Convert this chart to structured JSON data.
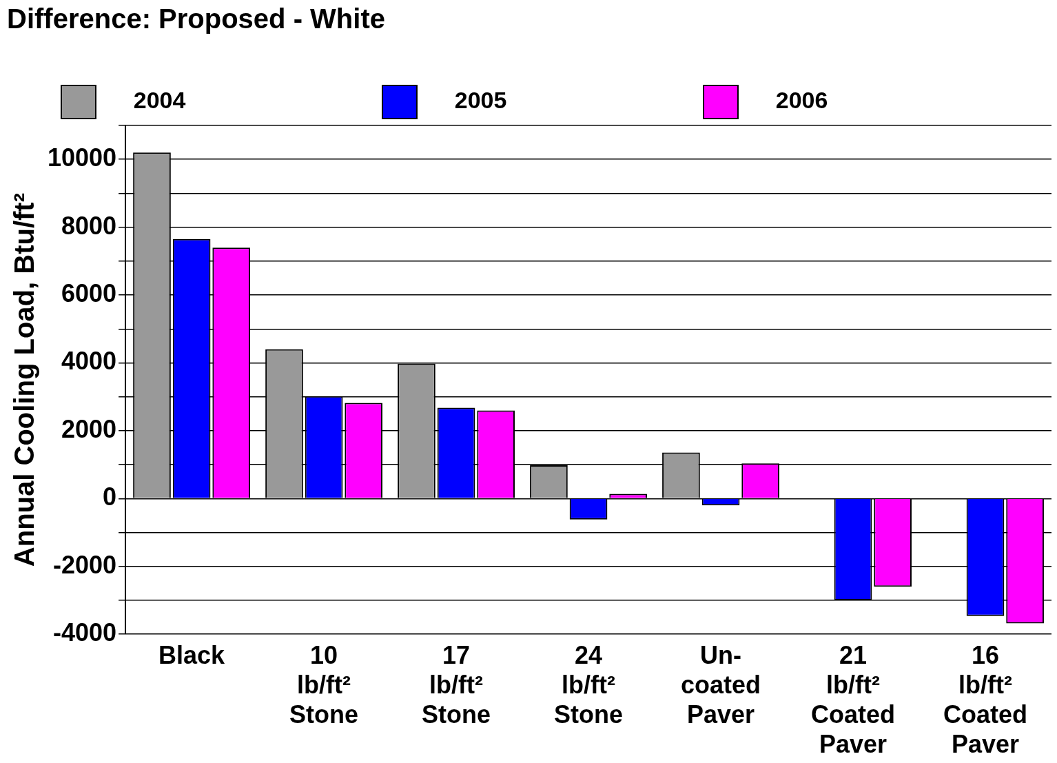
{
  "chart_data": {
    "type": "bar",
    "title": "Difference: Proposed - White",
    "ylabel": "Annual Cooling Load, Btu/ft²",
    "categories": [
      "Black",
      "10\nlb/ft²\nStone",
      "17\nlb/ft²\nStone",
      "24\nlb/ft²\nStone",
      "Un-\ncoated\nPaver",
      "21\nlb/ft²\nCoated\nPaver",
      "16\nlb/ft²\nCoated\nPaver"
    ],
    "series": [
      {
        "name": "2004",
        "color": "#999999",
        "values": [
          10200,
          4400,
          3980,
          980,
          1360,
          null,
          null
        ]
      },
      {
        "name": "2005",
        "color": "#0000ff",
        "values": [
          7650,
          3020,
          2680,
          -620,
          -200,
          -3000,
          -3460
        ]
      },
      {
        "name": "2006",
        "color": "#ff00ff",
        "values": [
          7400,
          2820,
          2600,
          140,
          1040,
          -2600,
          -3680
        ]
      }
    ],
    "ylim": [
      -4000,
      11000
    ],
    "yticks": [
      {
        "value": -4000,
        "label": "-4000"
      },
      {
        "value": -3000,
        "label": null
      },
      {
        "value": -2000,
        "label": "-2000"
      },
      {
        "value": -1000,
        "label": null
      },
      {
        "value": 0,
        "label": "0"
      },
      {
        "value": 1000,
        "label": null
      },
      {
        "value": 2000,
        "label": "2000"
      },
      {
        "value": 3000,
        "label": null
      },
      {
        "value": 4000,
        "label": "4000"
      },
      {
        "value": 5000,
        "label": null
      },
      {
        "value": 6000,
        "label": "6000"
      },
      {
        "value": 7000,
        "label": null
      },
      {
        "value": 8000,
        "label": "8000"
      },
      {
        "value": 9000,
        "label": null
      },
      {
        "value": 10000,
        "label": "10000"
      },
      {
        "value": 11000,
        "label": null
      }
    ],
    "grid": "y",
    "legend": "top"
  }
}
